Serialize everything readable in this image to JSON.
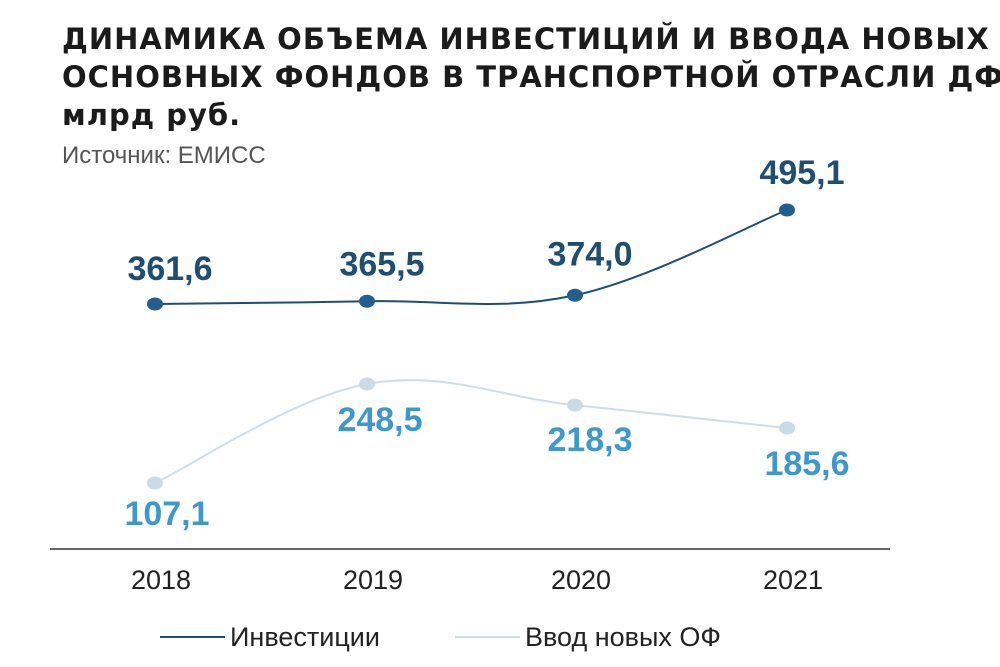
{
  "title_lines": [
    "ДИНАМИКА ОБЪЕМА ИНВЕСТИЦИЙ И ВВОДА НОВЫХ",
    "ОСНОВНЫХ ФОНДОВ В ТРАНСПОРТНОЙ ОТРАСЛИ ДФО,",
    "млрд руб."
  ],
  "source": "Источник: ЕМИСС",
  "colors": {
    "investments_line": "#1e4e74",
    "investments_marker": "#235e8c",
    "investments_label": "#1f4e70",
    "new_funds_line": "#cfdde6",
    "new_funds_marker": "#c9dbe6",
    "new_funds_label": "#3f98cc",
    "axis": "#333333"
  },
  "chart_data": {
    "type": "line",
    "categories": [
      "2018",
      "2019",
      "2020",
      "2021"
    ],
    "series": [
      {
        "name": "Инвестиции",
        "values": [
          361.6,
          365.5,
          374.0,
          495.1
        ],
        "labels": [
          "361,6",
          "365,5",
          "374,0",
          "495,1"
        ]
      },
      {
        "name": "Ввод новых ОФ",
        "values": [
          107.1,
          248.5,
          218.3,
          185.6
        ],
        "labels": [
          "107,1",
          "248,5",
          "218,3",
          "185,6"
        ]
      }
    ],
    "legend_position": "bottom",
    "grid": false
  }
}
